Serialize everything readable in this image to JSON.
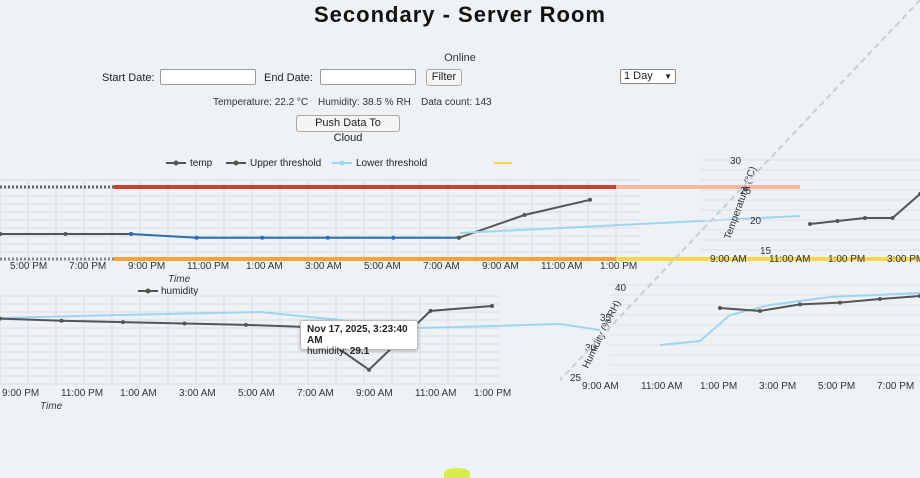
{
  "title": "Secondary - Server Room",
  "status": "Online",
  "filters": {
    "start_label": "Start Date:",
    "start_value": "",
    "end_label": "End Date:",
    "end_value": "",
    "filter_label": "Filter",
    "range_selected": "1 Day"
  },
  "readings": {
    "temperature": "Temperature: 22.2 °C",
    "humidity": "Humidity: 38.5 % RH",
    "data_count": "Data count: 143"
  },
  "push_label": "Push Data To Cloud",
  "legends": {
    "temp": [
      "temp",
      "Upper threshold",
      "Lower threshold"
    ],
    "humidity": [
      "humidity"
    ]
  },
  "colors": {
    "series": "#555555",
    "upper": "#c8442c",
    "lower_light": "#9fd4f0",
    "blue": "#2a6fb5",
    "orange": "#f1a33c",
    "yellow": "#f4d84a"
  },
  "tooltip": {
    "title": "Nov 17, 2025, 3:23:40 AM",
    "label": "humidity:",
    "value": "29.1"
  },
  "chart_data": [
    {
      "type": "line",
      "title": "",
      "xlabel": "Time",
      "ylabel": "",
      "x_ticks": [
        "5:00 PM",
        "7:00 PM",
        "9:00 PM",
        "11:00 PM",
        "1:00 AM",
        "3:00 AM",
        "5:00 AM",
        "7:00 AM",
        "9:00 AM",
        "11:00 AM",
        "1:00 PM"
      ],
      "series": [
        {
          "name": "temp",
          "values": [
            21.4,
            21.4,
            21.4,
            21.3,
            21.3,
            21.3,
            21.3,
            21.3,
            21.9,
            22.3
          ]
        },
        {
          "name": "Upper threshold",
          "values": [
            25,
            25,
            25,
            25,
            25,
            25,
            25,
            25,
            25,
            25
          ]
        },
        {
          "name": "Lower threshold",
          "values": [
            18,
            18,
            18,
            18,
            18,
            18,
            18,
            18,
            18,
            18
          ]
        }
      ]
    },
    {
      "type": "line",
      "title": "",
      "xlabel": "Time",
      "ylabel": "",
      "x_ticks": [
        "9:00 PM",
        "11:00 PM",
        "1:00 AM",
        "3:00 AM",
        "5:00 AM",
        "7:00 AM",
        "9:00 AM",
        "11:00 AM",
        "1:00 PM"
      ],
      "series": [
        {
          "name": "humidity",
          "values": [
            36.4,
            36.1,
            35.9,
            35.7,
            35.5,
            35.2,
            29.1,
            37.5,
            38.2
          ]
        }
      ]
    },
    {
      "type": "line",
      "title": "",
      "xlabel": "",
      "ylabel": "Temperature (°C)",
      "y_ticks": [
        "15",
        "20",
        "25",
        "30"
      ],
      "ylim": [
        15,
        30
      ],
      "x_ticks": [
        "9:00 AM",
        "11:00 AM",
        "1:00 PM",
        "3:00 PM"
      ],
      "series": [
        {
          "name": "temp",
          "values": [
            21.2,
            21.3,
            21.4,
            21.4,
            22.2
          ]
        }
      ]
    },
    {
      "type": "line",
      "title": "",
      "xlabel": "",
      "ylabel": "Humidity (% RH)",
      "y_ticks": [
        "25",
        "30",
        "35",
        "40"
      ],
      "ylim": [
        25,
        40
      ],
      "x_ticks": [
        "9:00 AM",
        "11:00 AM",
        "1:00 PM",
        "3:00 PM",
        "5:00 PM",
        "7:00 PM"
      ],
      "series": [
        {
          "name": "humidity",
          "values": [
            36.5,
            36.0,
            37.1,
            37.4,
            38.0,
            38.5
          ]
        }
      ]
    }
  ]
}
